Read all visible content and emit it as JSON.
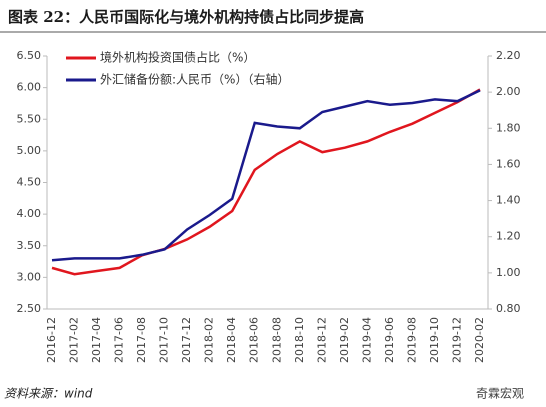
{
  "chart_data": {
    "type": "line",
    "title": "图表 22：人民币国际化与境外机构持债占比同步提高",
    "categories": [
      "2016-12",
      "2017-02",
      "2017-04",
      "2017-06",
      "2017-08",
      "2017-10",
      "2017-12",
      "2018-02",
      "2018-04",
      "2018-06",
      "2018-08",
      "2018-10",
      "2018-12",
      "2019-02",
      "2019-04",
      "2019-06",
      "2019-08",
      "2019-10",
      "2019-12",
      "2020-02"
    ],
    "series": [
      {
        "name": "境外机构投资国债占比（%）",
        "color": "#e0161e",
        "values": [
          3.15,
          3.05,
          3.1,
          3.15,
          3.35,
          3.45,
          3.6,
          3.8,
          4.05,
          4.7,
          4.95,
          5.15,
          4.98,
          5.05,
          5.15,
          5.3,
          5.43,
          5.6,
          5.77,
          5.97
        ]
      },
      {
        "name": "外汇储备份额:人民币（%）（右轴）",
        "color": "#1a1a8c",
        "axis": "y2",
        "values": [
          1.07,
          1.08,
          1.08,
          1.08,
          1.1,
          1.13,
          1.24,
          1.32,
          1.41,
          1.83,
          1.81,
          1.8,
          1.89,
          1.92,
          1.95,
          1.93,
          1.94,
          1.96,
          1.95,
          2.01
        ]
      }
    ],
    "ylim": [
      2.5,
      6.5
    ],
    "yticks": [
      {
        "value": 2.5,
        "label": "2.50"
      },
      {
        "value": 3,
        "label": "3.00"
      },
      {
        "value": 3.5,
        "label": "3.50"
      },
      {
        "value": 4,
        "label": "4.00"
      },
      {
        "value": 4.5,
        "label": "4.50"
      },
      {
        "value": 5,
        "label": "5.00"
      },
      {
        "value": 5.5,
        "label": "5.50"
      },
      {
        "value": 6,
        "label": "6.00"
      },
      {
        "value": 6.5,
        "label": "6.50"
      }
    ],
    "y2lim": [
      0.8,
      2.2
    ],
    "y2ticks": [
      {
        "value": 0.8,
        "label": "0.80"
      },
      {
        "value": 1,
        "label": "1.00"
      },
      {
        "value": 1.2,
        "label": "1.20"
      },
      {
        "value": 1.4,
        "label": "1.40"
      },
      {
        "value": 1.6,
        "label": "1.60"
      },
      {
        "value": 1.8,
        "label": "1.80"
      },
      {
        "value": 2,
        "label": "2.00"
      },
      {
        "value": 2.2,
        "label": "2.20"
      }
    ],
    "source": "资料来源：wind",
    "watermark": "奇霖宏观"
  }
}
